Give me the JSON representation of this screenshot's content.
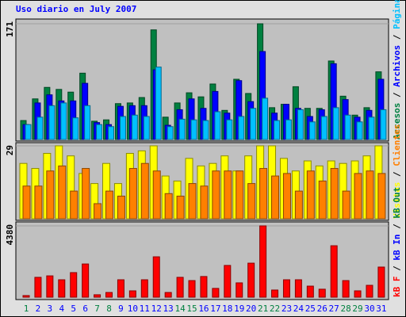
{
  "chart_data": [
    {
      "type": "bar",
      "title": "Uso diario en July 2007",
      "ylim": [
        0,
        171
      ],
      "yticks": [
        171
      ],
      "legend_separator": " / ",
      "series": [
        {
          "name": "Accesos",
          "color": "#008040",
          "values": [
            28,
            60,
            77,
            74,
            70,
            98,
            27,
            29,
            53,
            54,
            62,
            162,
            33,
            54,
            69,
            63,
            82,
            43,
            89,
            68,
            171,
            47,
            52,
            78,
            46,
            46,
            116,
            64,
            36,
            47,
            100
          ]
        },
        {
          "name": "Archivos",
          "color": "#0000ff",
          "values": [
            22,
            54,
            66,
            57,
            57,
            83,
            25,
            22,
            49,
            50,
            50,
            103,
            21,
            44,
            60,
            46,
            71,
            39,
            87,
            56,
            130,
            39,
            52,
            46,
            34,
            44,
            112,
            59,
            33,
            43,
            89
          ]
        },
        {
          "name": "Páginas",
          "color": "#00c0ff",
          "values": [
            22,
            33,
            50,
            54,
            32,
            50,
            22,
            19,
            34,
            36,
            34,
            107,
            19,
            30,
            29,
            28,
            41,
            29,
            34,
            46,
            61,
            28,
            29,
            44,
            26,
            34,
            47,
            36,
            26,
            33,
            44
          ]
        }
      ]
    },
    {
      "type": "bar",
      "ylim": [
        0,
        29
      ],
      "yticks": [
        29
      ],
      "legend_separator": " / ",
      "series": [
        {
          "name": "Visitas",
          "color": "#ffff00",
          "values": [
            22,
            20,
            26,
            29,
            25,
            18,
            14,
            22,
            14,
            26,
            27,
            29,
            17,
            15,
            24,
            21,
            22,
            25,
            19,
            25,
            29,
            29,
            24,
            19,
            23,
            21,
            23,
            22,
            23,
            25,
            29
          ]
        },
        {
          "name": "Clientes",
          "color": "#ff8000",
          "values": [
            13,
            13,
            19,
            21,
            11,
            20,
            6,
            11,
            9,
            20,
            22,
            19,
            10,
            9,
            14,
            13,
            19,
            19,
            19,
            14,
            20,
            17,
            18,
            11,
            19,
            15,
            20,
            11,
            18,
            19,
            18
          ]
        }
      ]
    },
    {
      "type": "bar",
      "ylim": [
        0,
        4380
      ],
      "yticks": [
        4380
      ],
      "legend_separator": " / ",
      "categories": [
        "1",
        "2",
        "3",
        "4",
        "5",
        "6",
        "7",
        "8",
        "9",
        "10",
        "11",
        "12",
        "13",
        "14",
        "15",
        "16",
        "17",
        "18",
        "19",
        "20",
        "21",
        "22",
        "23",
        "24",
        "25",
        "26",
        "27",
        "28",
        "29",
        "30",
        "31"
      ],
      "category_colors": [
        "#008040",
        "#0000ff",
        "#0000ff",
        "#0000ff",
        "#0000ff",
        "#0000ff",
        "#008040",
        "#008040",
        "#0000ff",
        "#0000ff",
        "#0000ff",
        "#0000ff",
        "#0000ff",
        "#008040",
        "#008040",
        "#0000ff",
        "#0000ff",
        "#0000ff",
        "#0000ff",
        "#0000ff",
        "#008040",
        "#008040",
        "#0000ff",
        "#0000ff",
        "#0000ff",
        "#0000ff",
        "#0000ff",
        "#008040",
        "#008040",
        "#0000ff",
        "#0000ff"
      ],
      "series": [
        {
          "name": "kB F",
          "color": "#ff0000",
          "values": [
            100,
            1220,
            1310,
            1070,
            1510,
            2040,
            150,
            290,
            1070,
            390,
            1070,
            2480,
            290,
            1220,
            1020,
            1270,
            540,
            1950,
            880,
            2090,
            4380,
            440,
            1070,
            1070,
            680,
            490,
            3160,
            1020,
            390,
            730,
            1850
          ]
        }
      ],
      "extra_legend": [
        {
          "name": "kB In",
          "color": "#0000ff"
        },
        {
          "name": "kB Out",
          "color": "#008040"
        }
      ]
    }
  ]
}
